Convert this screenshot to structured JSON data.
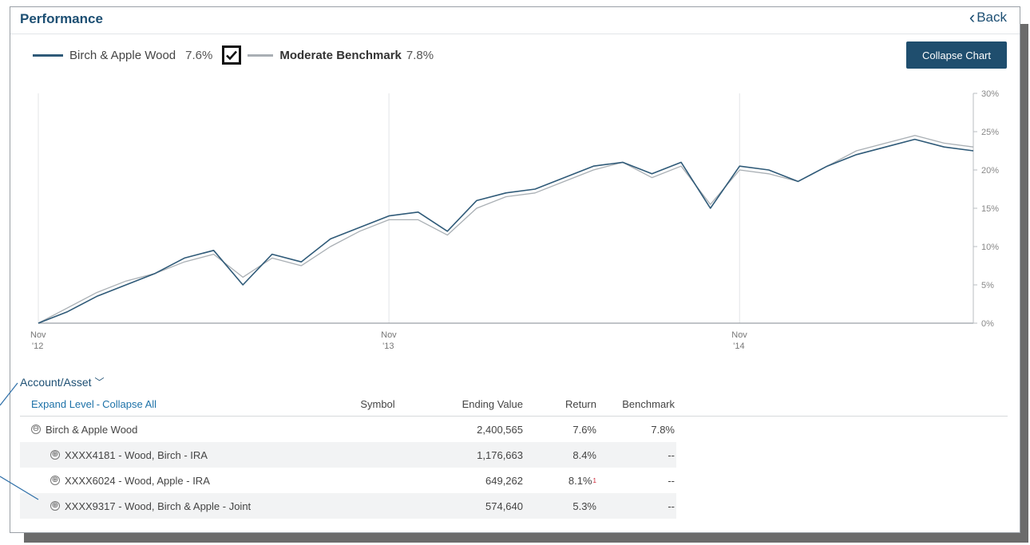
{
  "header": {
    "title": "Performance",
    "back_label": "Back"
  },
  "legend": {
    "portfolio_name": "Birch & Apple Wood",
    "portfolio_value": "7.6%",
    "benchmark_name": "Moderate Benchmark",
    "benchmark_value": "7.8%",
    "benchmark_checked": true
  },
  "collapse_chart_label": "Collapse Chart",
  "chart_data": {
    "type": "line",
    "x_ticks": [
      {
        "label1": "Nov",
        "label2": "'12"
      },
      {
        "label1": "Nov",
        "label2": "'13"
      },
      {
        "label1": "Nov",
        "label2": "'14"
      }
    ],
    "y_ticks": [
      "0%",
      "5%",
      "10%",
      "15%",
      "20%",
      "25%",
      "30%"
    ],
    "ylim": [
      0,
      30
    ],
    "x_range": [
      "2012-11",
      "2015-07"
    ],
    "series": [
      {
        "name": "Birch & Apple Wood",
        "color": "#2f5a78",
        "x": [
          "2012-11",
          "2012-12",
          "2013-01",
          "2013-02",
          "2013-03",
          "2013-04",
          "2013-05",
          "2013-06",
          "2013-07",
          "2013-08",
          "2013-09",
          "2013-10",
          "2013-11",
          "2013-12",
          "2014-01",
          "2014-02",
          "2014-03",
          "2014-04",
          "2014-05",
          "2014-06",
          "2014-07",
          "2014-08",
          "2014-09",
          "2014-10",
          "2014-11",
          "2014-12",
          "2015-01",
          "2015-02",
          "2015-03",
          "2015-04",
          "2015-05",
          "2015-06",
          "2015-07"
        ],
        "y": [
          0.0,
          1.5,
          3.5,
          5.0,
          6.5,
          8.5,
          9.5,
          5.0,
          9.0,
          8.0,
          11.0,
          12.5,
          14.0,
          14.5,
          12.0,
          16.0,
          17.0,
          17.5,
          19.0,
          20.5,
          21.0,
          19.5,
          21.0,
          15.0,
          20.5,
          20.0,
          18.5,
          20.5,
          22.0,
          23.0,
          24.0,
          23.0,
          22.5
        ]
      },
      {
        "name": "Moderate Benchmark",
        "color": "#a9afb4",
        "x": [
          "2012-11",
          "2012-12",
          "2013-01",
          "2013-02",
          "2013-03",
          "2013-04",
          "2013-05",
          "2013-06",
          "2013-07",
          "2013-08",
          "2013-09",
          "2013-10",
          "2013-11",
          "2013-12",
          "2014-01",
          "2014-02",
          "2014-03",
          "2014-04",
          "2014-05",
          "2014-06",
          "2014-07",
          "2014-08",
          "2014-09",
          "2014-10",
          "2014-11",
          "2014-12",
          "2015-01",
          "2015-02",
          "2015-03",
          "2015-04",
          "2015-05",
          "2015-06",
          "2015-07"
        ],
        "y": [
          0.0,
          2.0,
          4.0,
          5.5,
          6.5,
          8.0,
          9.0,
          6.0,
          8.5,
          7.5,
          10.0,
          12.0,
          13.5,
          13.5,
          11.5,
          15.0,
          16.5,
          17.0,
          18.5,
          20.0,
          21.0,
          19.0,
          20.5,
          15.5,
          20.0,
          19.5,
          18.5,
          20.5,
          22.5,
          23.5,
          24.5,
          23.5,
          23.0
        ]
      }
    ]
  },
  "table": {
    "toggle_label": "Account/Asset",
    "expand_label": "Expand Level",
    "separator": "-",
    "collapse_all_label": "Collapse All",
    "columns": {
      "symbol": "Symbol",
      "ending_value": "Ending Value",
      "return": "Return",
      "benchmark": "Benchmark"
    },
    "rows": [
      {
        "name": "Birch & Apple Wood",
        "symbol": "",
        "ending_value": "2,400,565",
        "return": "7.6%",
        "footnote": "",
        "benchmark": "7.8%"
      },
      {
        "name": "XXXX4181 - Wood, Birch - IRA",
        "symbol": "",
        "ending_value": "1,176,663",
        "return": "8.4%",
        "footnote": "",
        "benchmark": "--"
      },
      {
        "name": "XXXX6024 - Wood, Apple - IRA",
        "symbol": "",
        "ending_value": "649,262",
        "return": "8.1%",
        "footnote": "1",
        "benchmark": "--"
      },
      {
        "name": "XXXX9317 - Wood, Birch & Apple - Joint",
        "symbol": "",
        "ending_value": "574,640",
        "return": "5.3%",
        "footnote": "",
        "benchmark": "--"
      }
    ]
  },
  "icons": {
    "collapse": "⊖",
    "expand": "⊕",
    "back": "‹",
    "dropdown": "﹀"
  }
}
